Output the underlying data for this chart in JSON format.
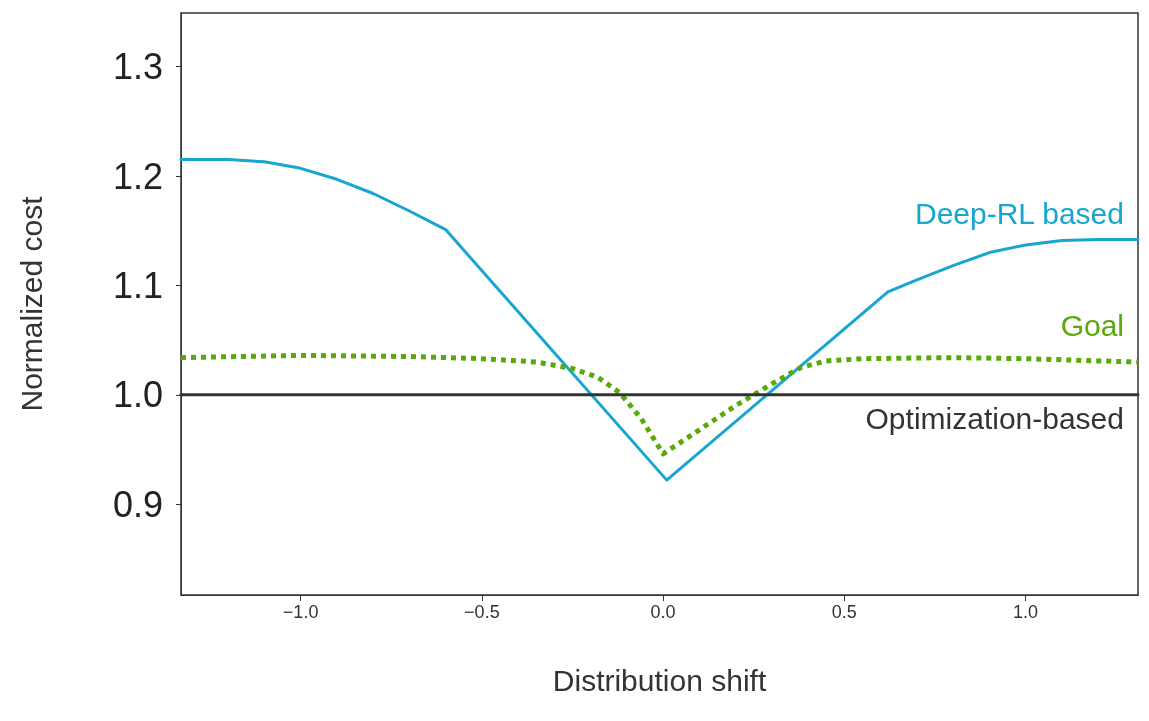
{
  "chart_data": {
    "type": "line",
    "xlabel": "Distribution shift",
    "ylabel": "Normalized cost",
    "xlim": [
      -1.33,
      1.31
    ],
    "xticks": [
      {
        "value": -1.0,
        "label": "−1.0"
      },
      {
        "value": -0.5,
        "label": "−0.5"
      },
      {
        "value": 0.0,
        "label": "0.0"
      },
      {
        "value": 0.5,
        "label": "0.5"
      },
      {
        "value": 1.0,
        "label": "1.0"
      }
    ],
    "ylim": [
      0.817,
      1.349
    ],
    "yticks": [
      {
        "value": 0.9,
        "label": "0.9"
      },
      {
        "value": 1.0,
        "label": "1.0"
      },
      {
        "value": 1.1,
        "label": "1.1"
      },
      {
        "value": 1.2,
        "label": "1.2"
      },
      {
        "value": 1.3,
        "label": "1.3"
      }
    ],
    "grid": false,
    "legend": false,
    "marker": "none",
    "series": [
      {
        "name": "Deep-RL based",
        "color": "#18a5d0",
        "line_style": "solid",
        "x": [
          -1.33,
          -1.2,
          -1.1,
          -1.0,
          -0.9,
          -0.8,
          -0.7,
          -0.6,
          0.01,
          0.62,
          0.7,
          0.8,
          0.9,
          1.0,
          1.1,
          1.2,
          1.31
        ],
        "values": [
          1.215,
          1.215,
          1.213,
          1.207,
          1.197,
          1.184,
          1.168,
          1.151,
          0.922,
          1.094,
          1.105,
          1.118,
          1.13,
          1.137,
          1.141,
          1.142,
          1.142
        ]
      },
      {
        "name": "Goal",
        "color": "#5aa80a",
        "line_style": "dotted",
        "x": [
          -1.33,
          -1.0,
          -0.7,
          -0.5,
          -0.35,
          -0.25,
          -0.18,
          -0.12,
          -0.06,
          0.0,
          0.1,
          0.2,
          0.3,
          0.38,
          0.45,
          0.55,
          0.8,
          1.0,
          1.2,
          1.31
        ],
        "values": [
          1.034,
          1.036,
          1.035,
          1.033,
          1.03,
          1.024,
          1.016,
          1.002,
          0.978,
          0.946,
          0.968,
          0.99,
          1.01,
          1.025,
          1.031,
          1.033,
          1.034,
          1.033,
          1.031,
          1.03
        ]
      },
      {
        "name": "Optimization-based",
        "color": "#333333",
        "line_style": "solid",
        "x": [
          -1.33,
          1.31
        ],
        "values": [
          1.0,
          1.0
        ]
      }
    ]
  }
}
